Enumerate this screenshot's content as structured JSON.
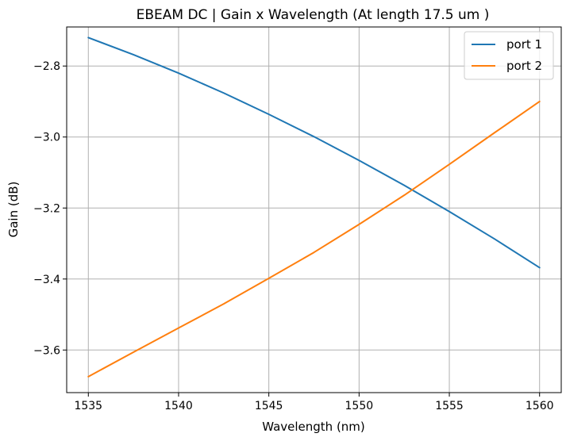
{
  "chart_data": {
    "type": "line",
    "title": "EBEAM DC | Gain x Wavelength (At length 17.5 um )",
    "xlabel": "Wavelength (nm)",
    "ylabel": "Gain (dB)",
    "xlim": [
      1533.8,
      1561.2
    ],
    "ylim": [
      -3.72,
      -2.69
    ],
    "xticks": [
      1535,
      1540,
      1545,
      1550,
      1555,
      1560
    ],
    "xtick_labels": [
      "1535",
      "1540",
      "1545",
      "1550",
      "1555",
      "1560"
    ],
    "yticks": [
      -2.8,
      -3.0,
      -3.2,
      -3.4,
      -3.6
    ],
    "ytick_labels": [
      "−2.8",
      "−3.0",
      "−3.2",
      "−3.4",
      "−3.6"
    ],
    "grid": true,
    "legend_position": "top-right",
    "series": [
      {
        "name": "port 1",
        "color": "#1f77b4",
        "x": [
          1535,
          1537.5,
          1540,
          1542.5,
          1545,
          1547.5,
          1550,
          1552.5,
          1555,
          1557.5,
          1560
        ],
        "y": [
          -2.72,
          -2.768,
          -2.82,
          -2.876,
          -2.936,
          -2.999,
          -3.066,
          -3.136,
          -3.21,
          -3.287,
          -3.368
        ]
      },
      {
        "name": "port 2",
        "color": "#ff7f0e",
        "x": [
          1535,
          1537.5,
          1540,
          1542.5,
          1545,
          1547.5,
          1550,
          1552.5,
          1555,
          1557.5,
          1560
        ],
        "y": [
          -3.675,
          -3.606,
          -3.538,
          -3.47,
          -3.398,
          -3.325,
          -3.246,
          -3.164,
          -3.077,
          -2.988,
          -2.9
        ]
      }
    ]
  }
}
